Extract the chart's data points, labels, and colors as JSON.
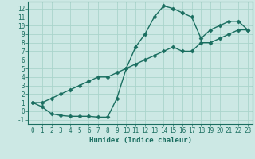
{
  "title": "",
  "xlabel": "Humidex (Indice chaleur)",
  "background_color": "#cce8e4",
  "grid_color": "#aad4cc",
  "line_color": "#1a6e60",
  "xlim": [
    -0.5,
    23.5
  ],
  "ylim": [
    -1.5,
    12.8
  ],
  "xticks": [
    0,
    1,
    2,
    3,
    4,
    5,
    6,
    7,
    8,
    9,
    10,
    11,
    12,
    13,
    14,
    15,
    16,
    17,
    18,
    19,
    20,
    21,
    22,
    23
  ],
  "yticks": [
    -1,
    0,
    1,
    2,
    3,
    4,
    5,
    6,
    7,
    8,
    9,
    10,
    11,
    12
  ],
  "curve1_x": [
    0,
    1,
    2,
    3,
    4,
    5,
    6,
    7,
    8,
    9,
    10,
    11,
    12,
    13,
    14,
    15,
    16,
    17,
    18,
    19,
    20,
    21,
    22,
    23
  ],
  "curve1_y": [
    1.0,
    1.0,
    1.5,
    2.0,
    2.5,
    3.0,
    3.5,
    4.0,
    4.0,
    4.5,
    5.0,
    5.5,
    6.0,
    6.5,
    7.0,
    7.5,
    7.0,
    7.0,
    8.0,
    8.0,
    8.5,
    9.0,
    9.5,
    9.5
  ],
  "curve2_x": [
    0,
    1,
    2,
    3,
    4,
    5,
    6,
    7,
    8,
    9,
    10,
    11,
    12,
    13,
    14,
    15,
    16,
    17,
    18,
    19,
    20,
    21,
    22,
    23
  ],
  "curve2_y": [
    1.0,
    0.5,
    -0.3,
    -0.5,
    -0.6,
    -0.6,
    -0.6,
    -0.7,
    -0.7,
    1.5,
    5.0,
    7.5,
    9.0,
    11.0,
    12.3,
    12.0,
    11.5,
    11.0,
    8.5,
    9.5,
    10.0,
    10.5,
    10.5,
    9.5
  ],
  "marker": "D",
  "markersize": 2.5,
  "linewidth": 1.0,
  "xlabel_fontsize": 6.5,
  "tick_fontsize": 5.5
}
